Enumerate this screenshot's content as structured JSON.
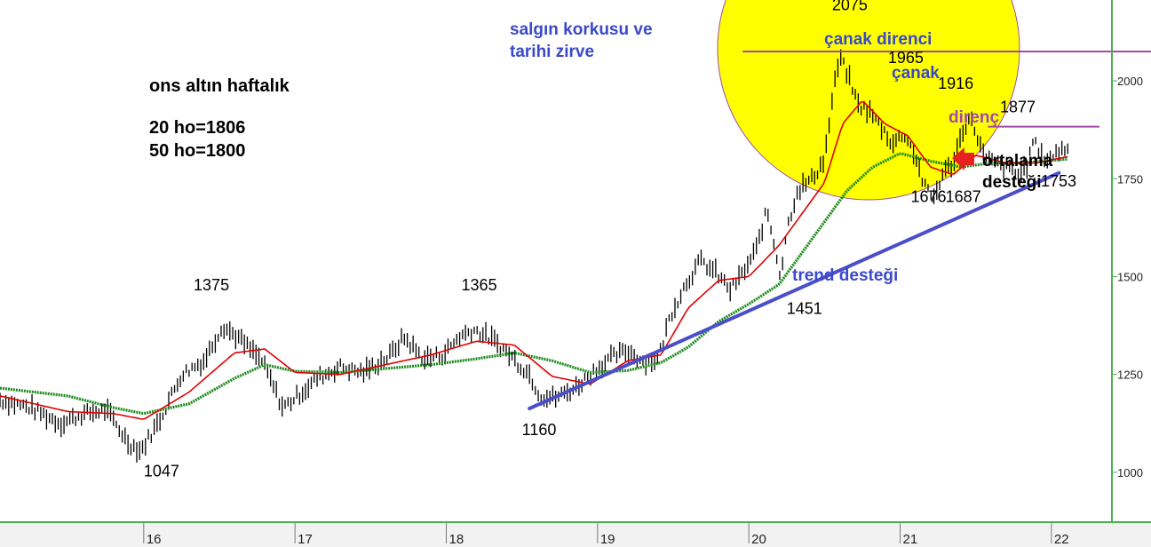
{
  "chart_data": {
    "type": "line",
    "title": "ons altın haftalık",
    "subtitle_lines": [
      "20 ho=1806",
      "50 ho=1800"
    ],
    "x_axis": {
      "tick_labels": [
        "16",
        "17",
        "18",
        "19",
        "20",
        "21",
        "22"
      ],
      "tick_positions_year": [
        2016,
        2017,
        2018,
        2019,
        2020,
        2021,
        2022
      ],
      "range": [
        2015.05,
        2022.4
      ]
    },
    "y_axis": {
      "tick_labels": [
        "1000",
        "1250",
        "1500",
        "1750",
        "2000"
      ],
      "tick_values": [
        1000,
        1250,
        1500,
        1750,
        2000
      ],
      "range": [
        880,
        2180
      ]
    },
    "price_anchors": [
      [
        2015.05,
        1185
      ],
      [
        2015.25,
        1165
      ],
      [
        2015.45,
        1125
      ],
      [
        2015.6,
        1148
      ],
      [
        2015.75,
        1160
      ],
      [
        2015.9,
        1075
      ],
      [
        2015.98,
        1055
      ],
      [
        2016.1,
        1130
      ],
      [
        2016.25,
        1250
      ],
      [
        2016.4,
        1285
      ],
      [
        2016.52,
        1375
      ],
      [
        2016.62,
        1345
      ],
      [
        2016.78,
        1285
      ],
      [
        2016.92,
        1165
      ],
      [
        2017.0,
        1190
      ],
      [
        2017.15,
        1240
      ],
      [
        2017.3,
        1270
      ],
      [
        2017.45,
        1255
      ],
      [
        2017.62,
        1295
      ],
      [
        2017.72,
        1345
      ],
      [
        2017.85,
        1290
      ],
      [
        2017.98,
        1300
      ],
      [
        2018.08,
        1345
      ],
      [
        2018.18,
        1365
      ],
      [
        2018.3,
        1340
      ],
      [
        2018.42,
        1300
      ],
      [
        2018.55,
        1250
      ],
      [
        2018.62,
        1195
      ],
      [
        2018.72,
        1190
      ],
      [
        2018.85,
        1215
      ],
      [
        2018.98,
        1260
      ],
      [
        2019.1,
        1295
      ],
      [
        2019.2,
        1310
      ],
      [
        2019.3,
        1285
      ],
      [
        2019.4,
        1290
      ],
      [
        2019.48,
        1400
      ],
      [
        2019.58,
        1480
      ],
      [
        2019.68,
        1540
      ],
      [
        2019.78,
        1510
      ],
      [
        2019.88,
        1465
      ],
      [
        2019.98,
        1520
      ],
      [
        2020.05,
        1570
      ],
      [
        2020.12,
        1670
      ],
      [
        2020.18,
        1560
      ],
      [
        2020.21,
        1500
      ],
      [
        2020.25,
        1620
      ],
      [
        2020.32,
        1720
      ],
      [
        2020.42,
        1750
      ],
      [
        2020.5,
        1800
      ],
      [
        2020.56,
        1975
      ],
      [
        2020.6,
        2060
      ],
      [
        2020.65,
        2020
      ],
      [
        2020.72,
        1940
      ],
      [
        2020.8,
        1920
      ],
      [
        2020.88,
        1880
      ],
      [
        2020.95,
        1840
      ],
      [
        2021.03,
        1865
      ],
      [
        2021.1,
        1810
      ],
      [
        2021.16,
        1730
      ],
      [
        2021.22,
        1700
      ],
      [
        2021.28,
        1760
      ],
      [
        2021.35,
        1790
      ],
      [
        2021.42,
        1880
      ],
      [
        2021.46,
        1905
      ],
      [
        2021.5,
        1870
      ],
      [
        2021.56,
        1800
      ],
      [
        2021.62,
        1790
      ],
      [
        2021.7,
        1780
      ],
      [
        2021.78,
        1760
      ],
      [
        2021.85,
        1790
      ],
      [
        2021.88,
        1860
      ],
      [
        2021.92,
        1810
      ],
      [
        2021.98,
        1800
      ],
      [
        2022.05,
        1820
      ],
      [
        2022.1,
        1830
      ]
    ],
    "ma20_anchors": [
      [
        2015.05,
        1195
      ],
      [
        2015.5,
        1155
      ],
      [
        2015.8,
        1150
      ],
      [
        2016.0,
        1135
      ],
      [
        2016.3,
        1205
      ],
      [
        2016.6,
        1305
      ],
      [
        2016.8,
        1315
      ],
      [
        2017.0,
        1255
      ],
      [
        2017.3,
        1250
      ],
      [
        2017.6,
        1275
      ],
      [
        2017.9,
        1300
      ],
      [
        2018.2,
        1335
      ],
      [
        2018.45,
        1325
      ],
      [
        2018.7,
        1245
      ],
      [
        2018.95,
        1225
      ],
      [
        2019.2,
        1285
      ],
      [
        2019.42,
        1300
      ],
      [
        2019.6,
        1420
      ],
      [
        2019.8,
        1490
      ],
      [
        2020.0,
        1500
      ],
      [
        2020.2,
        1580
      ],
      [
        2020.35,
        1660
      ],
      [
        2020.5,
        1740
      ],
      [
        2020.62,
        1890
      ],
      [
        2020.75,
        1950
      ],
      [
        2020.9,
        1890
      ],
      [
        2021.05,
        1860
      ],
      [
        2021.2,
        1780
      ],
      [
        2021.35,
        1760
      ],
      [
        2021.5,
        1810
      ],
      [
        2021.7,
        1790
      ],
      [
        2021.9,
        1790
      ],
      [
        2022.1,
        1806
      ]
    ],
    "ma50_anchors": [
      [
        2015.05,
        1215
      ],
      [
        2015.5,
        1195
      ],
      [
        2015.8,
        1165
      ],
      [
        2016.0,
        1150
      ],
      [
        2016.3,
        1175
      ],
      [
        2016.6,
        1240
      ],
      [
        2016.8,
        1275
      ],
      [
        2017.0,
        1258
      ],
      [
        2017.3,
        1255
      ],
      [
        2017.6,
        1265
      ],
      [
        2017.9,
        1275
      ],
      [
        2018.2,
        1290
      ],
      [
        2018.45,
        1305
      ],
      [
        2018.7,
        1285
      ],
      [
        2018.95,
        1255
      ],
      [
        2019.2,
        1260
      ],
      [
        2019.42,
        1280
      ],
      [
        2019.6,
        1320
      ],
      [
        2019.8,
        1385
      ],
      [
        2020.0,
        1430
      ],
      [
        2020.2,
        1480
      ],
      [
        2020.35,
        1560
      ],
      [
        2020.5,
        1640
      ],
      [
        2020.65,
        1720
      ],
      [
        2020.82,
        1780
      ],
      [
        2021.0,
        1815
      ],
      [
        2021.2,
        1795
      ],
      [
        2021.4,
        1780
      ],
      [
        2021.6,
        1790
      ],
      [
        2021.8,
        1790
      ],
      [
        2022.1,
        1800
      ]
    ],
    "value_labels": [
      {
        "text": "1047",
        "x": 2016.0,
        "y": 990
      },
      {
        "text": "1375",
        "x": 2016.33,
        "y": 1465
      },
      {
        "text": "1365",
        "x": 2018.1,
        "y": 1465
      },
      {
        "text": "1160",
        "x": 2018.5,
        "y": 1095
      },
      {
        "text": "1451",
        "x": 2020.25,
        "y": 1405
      },
      {
        "text": "2075",
        "x": 2020.55,
        "y": 2180
      },
      {
        "text": "1965",
        "x": 2020.92,
        "y": 2045
      },
      {
        "text": "1916",
        "x": 2021.25,
        "y": 1980
      },
      {
        "text": "1877",
        "x": 2021.66,
        "y": 1920
      },
      {
        "text": "1676",
        "x": 2021.07,
        "y": 1690
      },
      {
        "text": "1687",
        "x": 2021.3,
        "y": 1690
      },
      {
        "text": "1753",
        "x": 2021.93,
        "y": 1730
      }
    ],
    "text_annotations": [
      {
        "text": "salgın korkusu ve",
        "color": "#3a49c9"
      },
      {
        "text": "tarihi zirve",
        "color": "#3a49c9"
      },
      {
        "text": "çanak direnci",
        "color": "#3a49c9"
      },
      {
        "text": "çanak",
        "color": "#3a49c9"
      },
      {
        "text": "direnç",
        "color": "#a34aa8"
      },
      {
        "text": "ortalama",
        "color": "#000000"
      },
      {
        "text": "desteği",
        "color": "#000000"
      },
      {
        "text": "trend desteği",
        "color": "#3a49c9"
      }
    ],
    "trend_line": {
      "from": [
        2018.55,
        1163
      ],
      "to": [
        2022.05,
        1765
      ]
    },
    "resistance_lines": [
      {
        "name": "çanak direnci",
        "y": 2075,
        "x_range": [
          2020.0,
          2022.4
        ]
      },
      {
        "name": "direnç",
        "y": 1883,
        "x_range": [
          2021.58,
          2022.4
        ]
      }
    ],
    "colors": {
      "price": "#000000",
      "ma20": "#e00000",
      "ma50": "#1a8a1a",
      "trend": "#4a4fc9",
      "resistance": "#a34aa8",
      "circle_fill": "#ffff00",
      "arrow": "#e82020",
      "axis": "#4caf50"
    }
  }
}
